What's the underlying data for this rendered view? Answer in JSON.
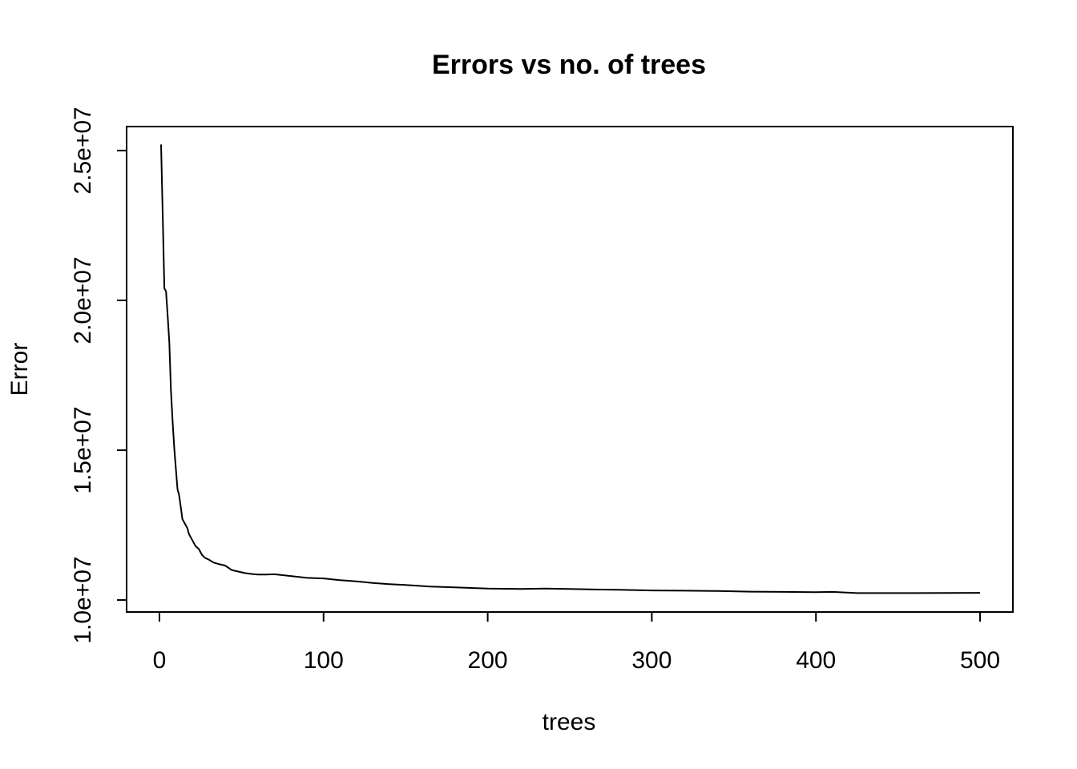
{
  "chart_data": {
    "type": "line",
    "title": "Errors vs no. of trees",
    "xlabel": "trees",
    "ylabel": "Error",
    "xlim": [
      -20,
      520
    ],
    "ylim": [
      9600000,
      25800000
    ],
    "grid": false,
    "legend": "none",
    "x_ticks": [
      0,
      100,
      200,
      300,
      400,
      500
    ],
    "x_tick_labels": [
      "0",
      "100",
      "200",
      "300",
      "400",
      "500"
    ],
    "y_ticks": [
      10000000,
      15000000,
      20000000,
      25000000
    ],
    "y_tick_labels": [
      "1.0e+07",
      "1.5e+07",
      "2.0e+07",
      "2.5e+07"
    ],
    "series": [
      {
        "color": "#000000",
        "x": [
          1,
          2,
          3,
          4,
          5,
          6,
          7,
          8,
          9,
          10,
          11,
          12,
          13,
          14,
          15,
          16,
          17,
          18,
          19,
          20,
          22,
          24,
          26,
          28,
          30,
          33,
          36,
          40,
          44,
          48,
          52,
          56,
          60,
          65,
          70,
          75,
          80,
          85,
          90,
          95,
          100,
          110,
          120,
          130,
          140,
          150,
          165,
          180,
          200,
          220,
          235,
          250,
          265,
          280,
          300,
          320,
          340,
          360,
          380,
          400,
          410,
          425,
          440,
          460,
          480,
          500
        ],
        "y": [
          25200000,
          22800000,
          20400000,
          20300000,
          19500000,
          18600000,
          17000000,
          16000000,
          15100000,
          14400000,
          13700000,
          13500000,
          13100000,
          12700000,
          12600000,
          12500000,
          12400000,
          12200000,
          12100000,
          12000000,
          11800000,
          11700000,
          11500000,
          11400000,
          11350000,
          11250000,
          11200000,
          11150000,
          11000000,
          10950000,
          10900000,
          10870000,
          10850000,
          10850000,
          10860000,
          10830000,
          10800000,
          10770000,
          10740000,
          10730000,
          10720000,
          10660000,
          10620000,
          10570000,
          10530000,
          10500000,
          10450000,
          10420000,
          10380000,
          10370000,
          10380000,
          10370000,
          10350000,
          10340000,
          10320000,
          10310000,
          10300000,
          10280000,
          10270000,
          10260000,
          10270000,
          10230000,
          10230000,
          10230000,
          10235000,
          10240000
        ]
      }
    ]
  }
}
